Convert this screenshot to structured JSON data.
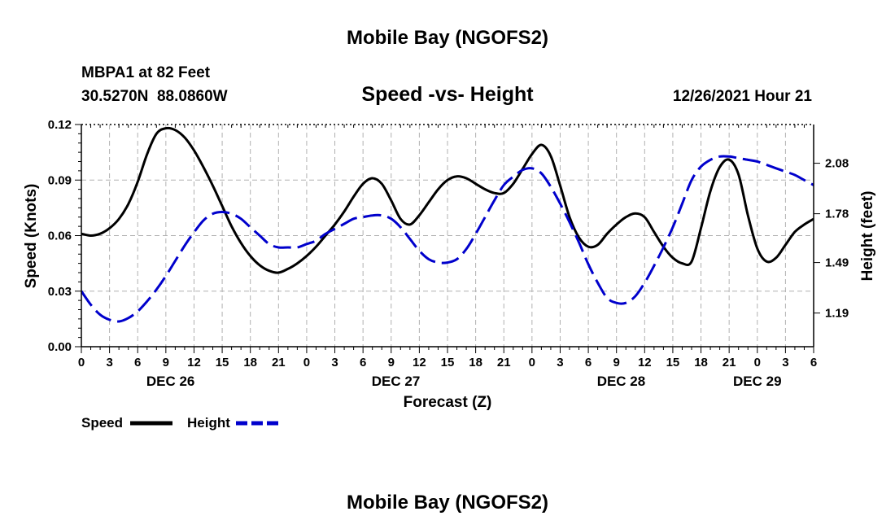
{
  "header": {
    "title": "Mobile Bay (NGOFS2)",
    "station_name": "MBPA1 at 82 Feet",
    "station_coords": "30.5270N  88.0860W",
    "chart_title": "Speed -vs- Height",
    "timestamp": "12/26/2021 Hour 21"
  },
  "footer": {
    "title": "Mobile Bay (NGOFS2)"
  },
  "colors": {
    "speed": "#000000",
    "height": "#0000cc",
    "grid": "#b0b0b0"
  },
  "chart_data": {
    "type": "line",
    "title": "Speed -vs- Height",
    "xlabel": "Forecast (Z)",
    "ylabel": "Speed (Knots)",
    "y2label": "Height (feet)",
    "x_ticks": [
      0,
      3,
      6,
      9,
      12,
      15,
      18,
      21,
      24,
      27,
      30,
      33,
      36,
      39,
      42,
      45,
      48,
      51,
      54,
      57,
      60,
      63,
      66,
      69,
      72,
      75,
      78
    ],
    "x_tick_labels": [
      "0",
      "3",
      "6",
      "9",
      "12",
      "15",
      "18",
      "21",
      "0",
      "3",
      "6",
      "9",
      "12",
      "15",
      "18",
      "21",
      "0",
      "3",
      "6",
      "9",
      "12",
      "15",
      "18",
      "21",
      "0",
      "3",
      "6"
    ],
    "date_labels": [
      {
        "label": "DEC 26",
        "x": 9.5
      },
      {
        "label": "DEC 27",
        "x": 33.5
      },
      {
        "label": "DEC 28",
        "x": 57.5
      },
      {
        "label": "DEC 29",
        "x": 72
      }
    ],
    "xlim": [
      0,
      78
    ],
    "ylim": [
      0,
      0.12
    ],
    "y_ticks": [
      0.0,
      0.03,
      0.06,
      0.09,
      0.12
    ],
    "y_tick_labels": [
      "0.00",
      "0.03",
      "0.06",
      "0.09",
      "0.12"
    ],
    "y2lim": [
      0.99,
      2.31
    ],
    "y2_ticks": [
      1.19,
      1.49,
      1.78,
      2.08
    ],
    "y2_tick_labels": [
      "1.19",
      "1.49",
      "1.78",
      "2.08"
    ],
    "grid": true,
    "legend": {
      "position": "bottom-left",
      "entries": [
        "Speed",
        "Height"
      ]
    },
    "series": [
      {
        "name": "Speed",
        "axis": "left",
        "style": "solid",
        "x": [
          0,
          1,
          2,
          3,
          4,
          5,
          6,
          7,
          8,
          9,
          10,
          11,
          12,
          13,
          14,
          15,
          16,
          17,
          18,
          19,
          20,
          21,
          22,
          23,
          24,
          25,
          26,
          27,
          28,
          29,
          30,
          31,
          32,
          33,
          34,
          35,
          36,
          37,
          38,
          39,
          40,
          41,
          42,
          43,
          44,
          45,
          46,
          47,
          48,
          49,
          50,
          51,
          52,
          53,
          54,
          55,
          56,
          57,
          58,
          59,
          60,
          61,
          62,
          63,
          64,
          65,
          66,
          67,
          68,
          69,
          70,
          71,
          72,
          73,
          74,
          75,
          76,
          77,
          78
        ],
        "values": [
          0.061,
          0.06,
          0.061,
          0.064,
          0.069,
          0.077,
          0.089,
          0.104,
          0.115,
          0.118,
          0.117,
          0.113,
          0.106,
          0.097,
          0.087,
          0.076,
          0.065,
          0.056,
          0.049,
          0.044,
          0.041,
          0.04,
          0.042,
          0.045,
          0.049,
          0.054,
          0.06,
          0.066,
          0.073,
          0.081,
          0.088,
          0.091,
          0.088,
          0.079,
          0.069,
          0.066,
          0.071,
          0.078,
          0.085,
          0.09,
          0.092,
          0.091,
          0.088,
          0.085,
          0.083,
          0.083,
          0.088,
          0.096,
          0.104,
          0.109,
          0.103,
          0.087,
          0.07,
          0.059,
          0.054,
          0.055,
          0.061,
          0.066,
          0.07,
          0.072,
          0.07,
          0.062,
          0.054,
          0.048,
          0.045,
          0.046,
          0.064,
          0.084,
          0.097,
          0.101,
          0.093,
          0.071,
          0.053,
          0.046,
          0.048,
          0.055,
          0.062,
          0.066,
          0.069
        ]
      },
      {
        "name": "Height",
        "axis": "right",
        "style": "dashed",
        "x": [
          0,
          1,
          2,
          3,
          4,
          5,
          6,
          7,
          8,
          9,
          10,
          11,
          12,
          13,
          14,
          15,
          16,
          17,
          18,
          19,
          20,
          21,
          22,
          23,
          24,
          25,
          26,
          27,
          28,
          29,
          30,
          31,
          32,
          33,
          34,
          35,
          36,
          37,
          38,
          39,
          40,
          41,
          42,
          43,
          44,
          45,
          46,
          47,
          48,
          49,
          50,
          51,
          52,
          53,
          54,
          55,
          56,
          57,
          58,
          59,
          60,
          61,
          62,
          63,
          64,
          65,
          66,
          67,
          68,
          69,
          70,
          71,
          72,
          73,
          74,
          75,
          76,
          77,
          78
        ],
        "values": [
          1.32,
          1.24,
          1.18,
          1.15,
          1.14,
          1.16,
          1.2,
          1.26,
          1.33,
          1.41,
          1.5,
          1.59,
          1.67,
          1.74,
          1.78,
          1.79,
          1.78,
          1.75,
          1.7,
          1.65,
          1.6,
          1.58,
          1.58,
          1.58,
          1.6,
          1.62,
          1.66,
          1.69,
          1.72,
          1.75,
          1.76,
          1.77,
          1.77,
          1.75,
          1.7,
          1.63,
          1.56,
          1.51,
          1.49,
          1.49,
          1.51,
          1.57,
          1.66,
          1.76,
          1.86,
          1.95,
          2.0,
          2.04,
          2.05,
          2.02,
          1.94,
          1.84,
          1.73,
          1.61,
          1.48,
          1.37,
          1.28,
          1.25,
          1.25,
          1.29,
          1.37,
          1.47,
          1.58,
          1.7,
          1.84,
          1.98,
          2.06,
          2.1,
          2.12,
          2.12,
          2.11,
          2.1,
          2.09,
          2.07,
          2.05,
          2.03,
          2.01,
          1.98,
          1.95
        ]
      }
    ]
  }
}
